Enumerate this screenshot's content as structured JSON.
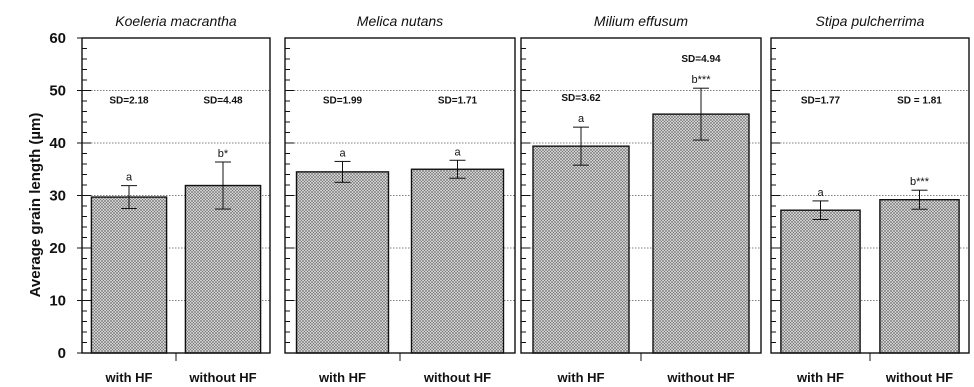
{
  "chart_data": {
    "type": "bar",
    "ylabel": "Average grain length (µm)",
    "ylim": [
      0,
      60
    ],
    "yticks": [
      0,
      10,
      20,
      30,
      40,
      50,
      60
    ],
    "grid": "horizontal dotted at 10-unit steps",
    "bar_fill": "gray crosshatch",
    "panels": [
      {
        "title": "Koeleria macrantha",
        "categories": [
          "with HF",
          "without HF"
        ],
        "values": [
          29.7,
          31.9
        ],
        "sd": [
          2.18,
          4.48
        ],
        "sd_labels": [
          "SD=2.18",
          "SD=4.48"
        ],
        "significance": [
          "a",
          "b*"
        ]
      },
      {
        "title": "Melica nutans",
        "categories": [
          "with HF",
          "without HF"
        ],
        "values": [
          34.5,
          35.0
        ],
        "sd": [
          1.99,
          1.71
        ],
        "sd_labels": [
          "SD=1.99",
          "SD=1.71"
        ],
        "significance": [
          "a",
          "a"
        ]
      },
      {
        "title": "Milium effusum",
        "categories": [
          "with HF",
          "without HF"
        ],
        "values": [
          39.4,
          45.5
        ],
        "sd": [
          3.62,
          4.94
        ],
        "sd_labels": [
          "SD=3.62",
          "SD=4.94"
        ],
        "significance": [
          "a",
          "b***"
        ]
      },
      {
        "title": "Stipa pulcherrima",
        "categories": [
          "with HF",
          "without HF"
        ],
        "values": [
          27.2,
          29.2
        ],
        "sd": [
          1.77,
          1.81
        ],
        "sd_labels": [
          "SD=1.77",
          "SD = 1.81"
        ],
        "significance": [
          "a",
          "b***"
        ]
      }
    ]
  }
}
